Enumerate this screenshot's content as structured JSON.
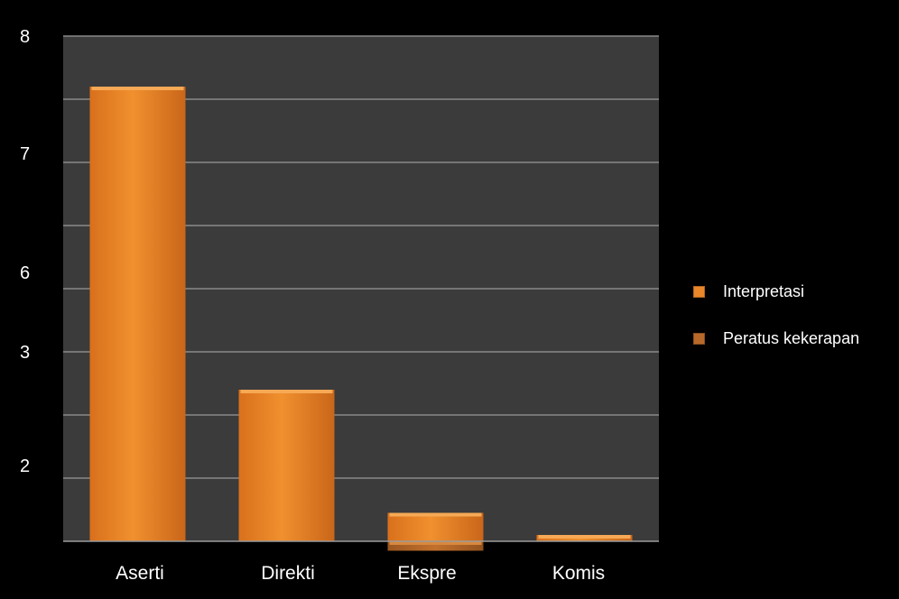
{
  "chart_data": {
    "type": "bar",
    "categories": [
      "Aserti",
      "Direkti",
      "Ekspre",
      "Komis"
    ],
    "y_tick_labels": [
      "8",
      "7",
      "6",
      "3",
      "2"
    ],
    "series": [
      {
        "name": "Interpretasi",
        "color": "#e8862a",
        "values": [
          7.2,
          2.4,
          0.45,
          0.1
        ]
      },
      {
        "name": "Peratus kekerapan",
        "color": "#b8692a",
        "values": [
          null,
          null,
          -0.15,
          null
        ]
      }
    ],
    "grid_levels": [
      0,
      1,
      2,
      3,
      4,
      5,
      6,
      7,
      8
    ],
    "ylim": [
      0,
      8
    ],
    "grid": true,
    "legend_position": "right",
    "title": "",
    "xlabel": "",
    "ylabel": ""
  },
  "colors": {
    "background": "#000000",
    "plot_area": "#3b3b3b",
    "gridline": "#8a8a8a",
    "bar": "#e8862a"
  }
}
